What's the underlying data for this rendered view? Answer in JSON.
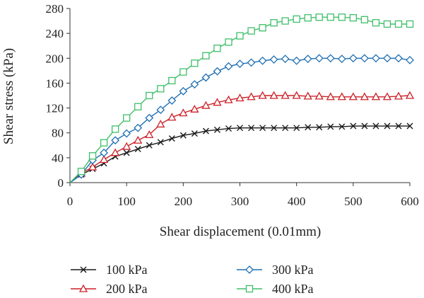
{
  "chart_data": {
    "type": "line",
    "title": "",
    "xlabel": "Shear displacement (0.01mm)",
    "ylabel": "Shear stress (kPa)",
    "xlim": [
      0,
      600
    ],
    "ylim": [
      0,
      280
    ],
    "xticks": [
      0,
      100,
      200,
      300,
      400,
      500,
      600
    ],
    "yticks": [
      0,
      40,
      80,
      120,
      160,
      200,
      240,
      280
    ],
    "grid": false,
    "legend_position": "bottom",
    "x": [
      0,
      20,
      40,
      60,
      80,
      100,
      120,
      140,
      160,
      180,
      200,
      220,
      240,
      260,
      280,
      300,
      320,
      340,
      360,
      380,
      400,
      420,
      440,
      460,
      480,
      500,
      520,
      540,
      560,
      580,
      600
    ],
    "series": [
      {
        "name": "100 kPa",
        "color": "#1a1a1a",
        "marker": "x",
        "values": [
          0,
          13,
          22,
          31,
          42,
          48,
          54,
          60,
          65,
          71,
          76,
          79,
          83,
          85,
          87,
          88,
          88,
          88,
          88,
          88,
          88,
          89,
          89,
          90,
          90,
          91,
          91,
          91,
          91,
          91,
          91
        ]
      },
      {
        "name": "200 kPa",
        "color": "#cc2229",
        "marker": "triangle",
        "values": [
          0,
          15,
          25,
          37,
          48,
          58,
          68,
          77,
          94,
          105,
          112,
          118,
          124,
          129,
          133,
          136,
          138,
          140,
          140,
          140,
          140,
          139,
          139,
          138,
          138,
          138,
          138,
          138,
          138,
          139,
          140
        ]
      },
      {
        "name": "300 kPa",
        "color": "#1f6fb4",
        "marker": "diamond",
        "values": [
          0,
          13,
          36,
          48,
          68,
          79,
          88,
          104,
          117,
          132,
          147,
          158,
          169,
          179,
          187,
          191,
          193,
          196,
          198,
          199,
          196,
          199,
          200,
          200,
          199,
          200,
          200,
          200,
          200,
          200,
          197
        ]
      },
      {
        "name": "400 kPa",
        "color": "#3fbf6a",
        "marker": "square",
        "values": [
          0,
          18,
          43,
          64,
          86,
          104,
          122,
          140,
          151,
          164,
          178,
          192,
          204,
          216,
          226,
          236,
          244,
          249,
          257,
          260,
          263,
          265,
          266,
          266,
          266,
          265,
          262,
          257,
          255,
          255,
          255
        ]
      }
    ]
  }
}
